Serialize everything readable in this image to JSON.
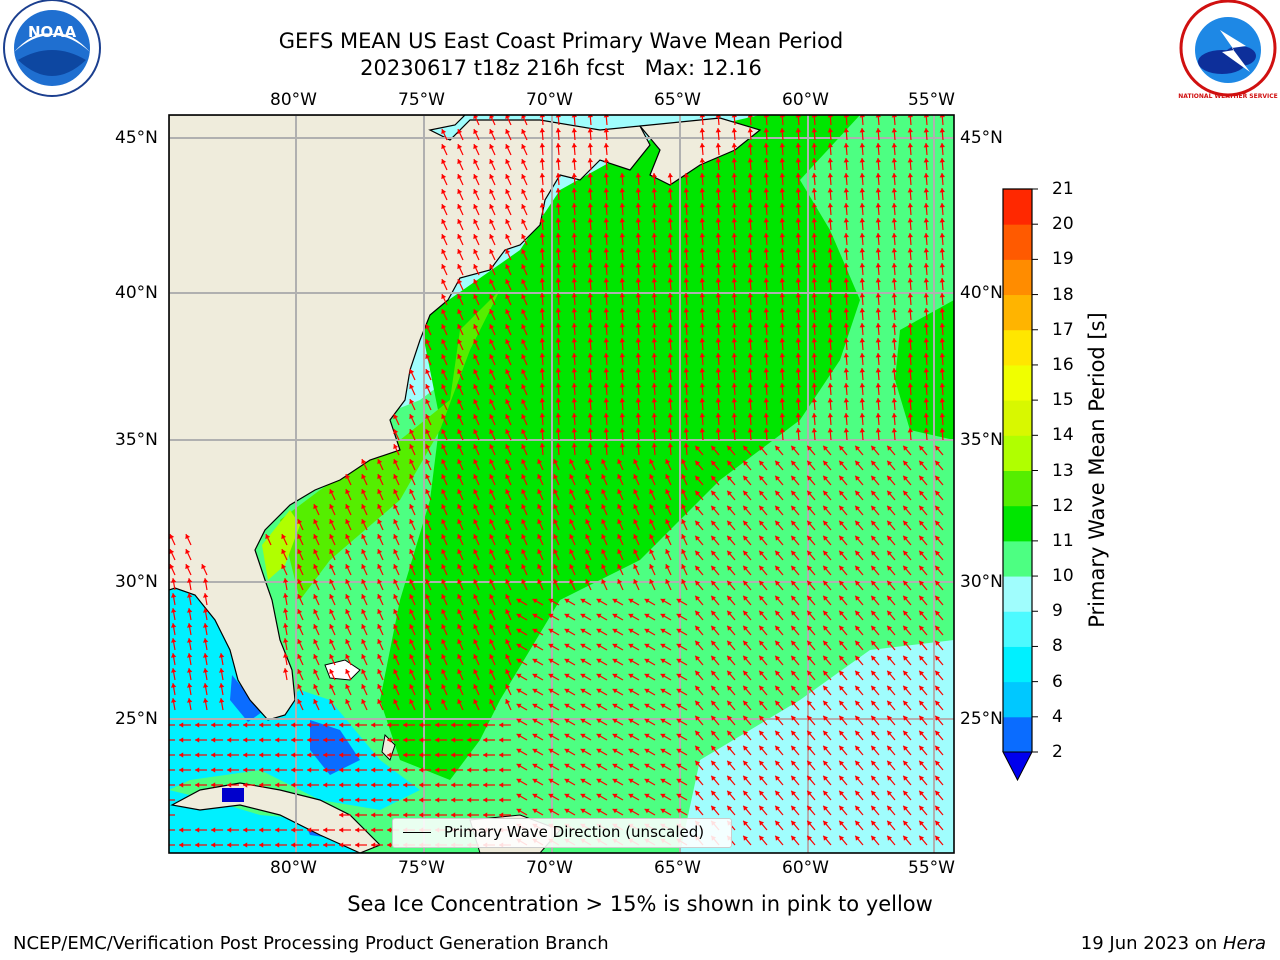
{
  "header": {
    "title_line1": "GEFS MEAN US East Coast Primary Wave Mean Period",
    "title_line2": "20230617 t18z 216h fcst   Max: 12.16",
    "left_logo_text": "NOAA",
    "right_logo_text": "NATIONAL WEATHER SERVICE"
  },
  "map": {
    "lon_ticks": [
      "80°W",
      "75°W",
      "70°W",
      "65°W",
      "60°W",
      "55°W"
    ],
    "lat_ticks": [
      "45°N",
      "40°N",
      "35°N",
      "30°N",
      "25°N"
    ],
    "lon_range": [
      -85,
      -54.4
    ],
    "lat_range": [
      20.5,
      45.8
    ],
    "land_color": "#efecdc",
    "arrow_color": "#ff0000",
    "legend_label": "Primary Wave Direction (unscaled)"
  },
  "colorbar": {
    "label": "Primary Wave Mean Period [s]",
    "ticks": [
      "2",
      "4",
      "6",
      "8",
      "9",
      "10",
      "11",
      "12",
      "13",
      "14",
      "15",
      "16",
      "17",
      "18",
      "19",
      "20",
      "21"
    ],
    "colors": [
      "#0a6cff",
      "#00c8ff",
      "#00f0ff",
      "#4dfaff",
      "#a0fdfd",
      "#4dff82",
      "#00e600",
      "#55ee00",
      "#b0ff00",
      "#d8f800",
      "#f0ff00",
      "#ffe600",
      "#ffb400",
      "#ff8c00",
      "#ff5a00",
      "#ff2800"
    ],
    "extend_color": "#0000ee"
  },
  "footer": {
    "note": "Sea Ice Concentration > 15% is shown in pink to yellow",
    "left": "NCEP/EMC/Verification Post Processing Product Generation Branch",
    "right_prefix": "19 Jun 2023 on ",
    "right_host": "Hera"
  }
}
